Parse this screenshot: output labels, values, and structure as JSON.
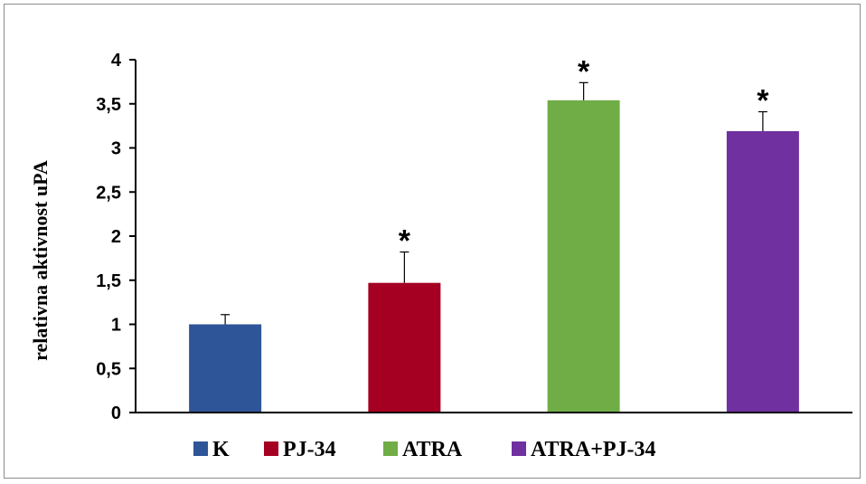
{
  "chart_data": {
    "type": "bar",
    "title": "",
    "xlabel": "",
    "ylabel": "relativna aktivnost uPA",
    "ylim": [
      0,
      4
    ],
    "yticks": [
      "0",
      "0,5",
      "1",
      "1,5",
      "2",
      "2,5",
      "3",
      "3,5",
      "4"
    ],
    "categories": [
      "K",
      "PJ-34",
      "ATRA",
      "ATRA+PJ-34"
    ],
    "values": [
      1.0,
      1.47,
      3.54,
      3.19
    ],
    "errors": [
      0.11,
      0.35,
      0.2,
      0.22
    ],
    "significance": [
      "",
      "*",
      "*",
      "*"
    ],
    "colors": [
      "#2E5597",
      "#A50021",
      "#70AD47",
      "#7030A0"
    ],
    "grid": false,
    "legend_position": "bottom"
  }
}
